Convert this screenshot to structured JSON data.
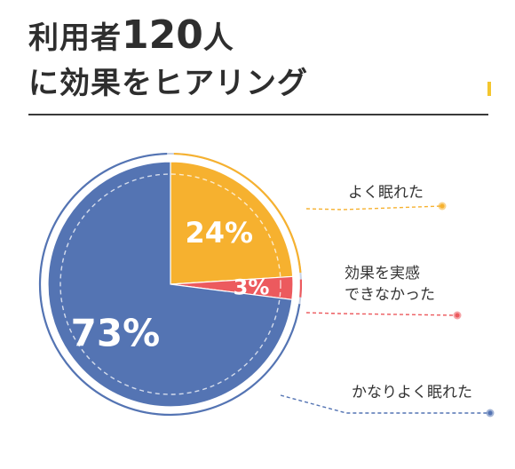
{
  "title": {
    "prefix": "利用者",
    "count": "120",
    "suffix": "人",
    "line2": "に効果をヒアリング"
  },
  "colors": {
    "accent": "#f4c62e"
  },
  "chart_data": {
    "type": "pie",
    "slices": [
      {
        "label": "よく眠れた",
        "value": 24,
        "display": "24%",
        "color": "#f6b12f"
      },
      {
        "label": "効果を実感\nできなかった",
        "label_lines": [
          "効果を実感",
          "できなかった"
        ],
        "value": 3,
        "display": "3%",
        "color": "#ec5a5e"
      },
      {
        "label": "かなりよく眠れた",
        "value": 73,
        "display": "73%",
        "color": "#5474b3"
      }
    ],
    "start": "12 o'clock",
    "direction": "clockwise"
  }
}
